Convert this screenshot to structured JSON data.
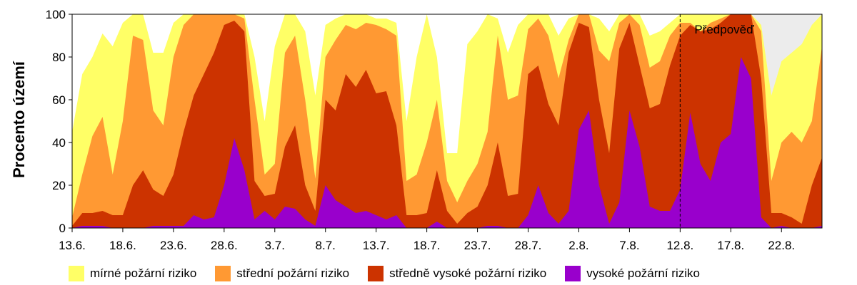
{
  "chart_data": {
    "type": "area",
    "stacked": true,
    "ylabel": "Procento území",
    "ylim": [
      0,
      100
    ],
    "yticks": [
      0,
      20,
      40,
      60,
      80,
      100
    ],
    "x_start": "13.6.",
    "x_end": "22.8.",
    "xticks": [
      "13.6.",
      "18.6.",
      "23.6.",
      "28.6.",
      "3.7.",
      "8.7.",
      "13.7.",
      "18.7.",
      "23.7.",
      "28.7.",
      "2.8.",
      "7.8.",
      "12.8.",
      "17.8.",
      "22.8."
    ],
    "forecast": {
      "label": "Předpověď",
      "start": "12.8.",
      "end": "22.8.",
      "color": "#ececec"
    },
    "cumulative": true,
    "series": [
      {
        "name": "vysoké požární riziko",
        "color": "#9900cc",
        "values": [
          0,
          1,
          1,
          1,
          0,
          0,
          0,
          0,
          1,
          1,
          1,
          1,
          6,
          4,
          5,
          20,
          42,
          27,
          4,
          8,
          4,
          10,
          9,
          4,
          1,
          20,
          13,
          10,
          7,
          8,
          6,
          4,
          6,
          0,
          0,
          0,
          3,
          0,
          0,
          0,
          0,
          1,
          1,
          0,
          0,
          6,
          20,
          7,
          2,
          8,
          46,
          55,
          20,
          2,
          12,
          55,
          38,
          10,
          8,
          8,
          18,
          54,
          30,
          22,
          40,
          44,
          80,
          70,
          5,
          0,
          1,
          0,
          0,
          0,
          1
        ]
      },
      {
        "name": "středně vysoké požární riziko",
        "color": "#cc3300",
        "values": [
          1,
          7,
          7,
          8,
          6,
          6,
          20,
          27,
          18,
          15,
          25,
          45,
          62,
          72,
          82,
          95,
          97,
          92,
          22,
          15,
          16,
          38,
          48,
          20,
          8,
          60,
          55,
          72,
          66,
          74,
          63,
          64,
          48,
          6,
          6,
          7,
          27,
          8,
          2,
          7,
          10,
          20,
          40,
          15,
          16,
          72,
          76,
          58,
          48,
          82,
          96,
          94,
          60,
          35,
          84,
          96,
          76,
          56,
          58,
          76,
          90,
          95,
          92,
          93,
          96,
          100,
          100,
          100,
          70,
          7,
          7,
          5,
          2,
          20,
          33
        ]
      },
      {
        "name": "střední požární riziko",
        "color": "#ff9933",
        "values": [
          5,
          25,
          43,
          52,
          25,
          50,
          90,
          88,
          55,
          48,
          80,
          95,
          100,
          100,
          100,
          100,
          100,
          98,
          60,
          25,
          30,
          82,
          90,
          60,
          23,
          80,
          88,
          95,
          93,
          96,
          95,
          93,
          90,
          22,
          25,
          40,
          60,
          22,
          12,
          22,
          30,
          45,
          90,
          60,
          62,
          93,
          98,
          90,
          70,
          88,
          100,
          100,
          83,
          78,
          96,
          100,
          95,
          75,
          78,
          90,
          96,
          96,
          92,
          96,
          98,
          100,
          100,
          100,
          92,
          22,
          40,
          45,
          40,
          50,
          85
        ]
      },
      {
        "name": "mírné požární riziko",
        "color": "#ffff66",
        "values": [
          45,
          72,
          80,
          91,
          85,
          96,
          100,
          100,
          82,
          82,
          96,
          100,
          100,
          100,
          100,
          100,
          100,
          100,
          80,
          50,
          85,
          100,
          100,
          92,
          62,
          95,
          98,
          100,
          100,
          100,
          98,
          98,
          96,
          50,
          80,
          100,
          80,
          35,
          35,
          86,
          92,
          100,
          98,
          82,
          95,
          100,
          100,
          100,
          90,
          98,
          100,
          100,
          98,
          92,
          100,
          100,
          100,
          90,
          92,
          96,
          100,
          100,
          100,
          100,
          100,
          100,
          100,
          100,
          95,
          62,
          78,
          82,
          86,
          95,
          100
        ]
      }
    ]
  }
}
